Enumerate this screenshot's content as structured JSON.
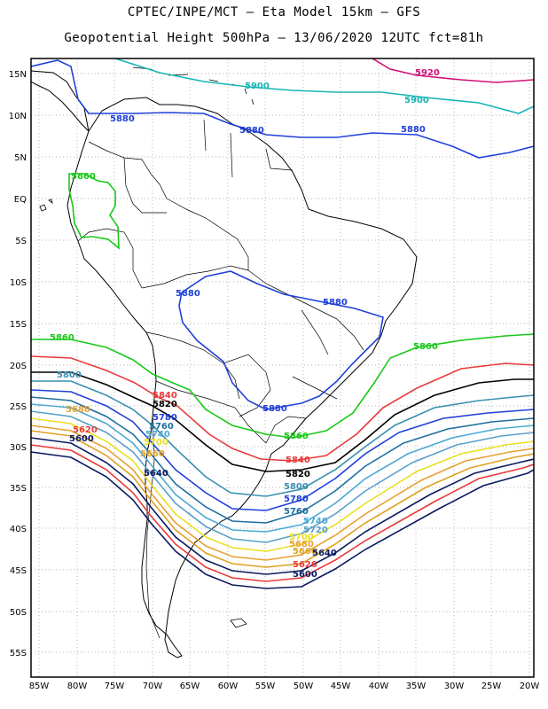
{
  "title": {
    "line1": "CPTEC/INPE/MCT –  Eta Model 15km – GFS",
    "line2": "Geopotential Height 500hPa – 13/06/2020 12UTC fct=81h"
  },
  "map": {
    "lon_ticks": [
      "85W",
      "80W",
      "75W",
      "70W",
      "65W",
      "60W",
      "55W",
      "50W",
      "45W",
      "40W",
      "35W",
      "30W",
      "25W",
      "20W"
    ],
    "lat_ticks": [
      "15N",
      "10N",
      "5N",
      "EQ",
      "5S",
      "10S",
      "15S",
      "20S",
      "25S",
      "30S",
      "35S",
      "40S",
      "45S",
      "50S",
      "55S"
    ]
  },
  "contours": [
    {
      "level": "5920",
      "color": "#d0107a"
    },
    {
      "level": "5900",
      "color": "#18b4b4"
    },
    {
      "level": "5880",
      "color": "#2040d8"
    },
    {
      "level": "5860",
      "color": "#18c818"
    },
    {
      "level": "5840",
      "color": "#e83a3a"
    },
    {
      "level": "5820",
      "color": "#000000"
    },
    {
      "level": "5800",
      "color": "#3a8fb0"
    },
    {
      "level": "5780",
      "color": "#2040d8"
    },
    {
      "level": "5760",
      "color": "#1f6f9f"
    },
    {
      "level": "5740",
      "color": "#4da9d4"
    },
    {
      "level": "5720",
      "color": "#5aa0c8"
    },
    {
      "level": "5700",
      "color": "#e8e020"
    },
    {
      "level": "5680",
      "color": "#e8a030"
    },
    {
      "level": "5660",
      "color": "#e0a020"
    },
    {
      "level": "5640",
      "color": "#0a1a60"
    },
    {
      "level": "5620",
      "color": "#e83a3a"
    },
    {
      "level": "5600",
      "color": "#0a1a60"
    }
  ]
}
